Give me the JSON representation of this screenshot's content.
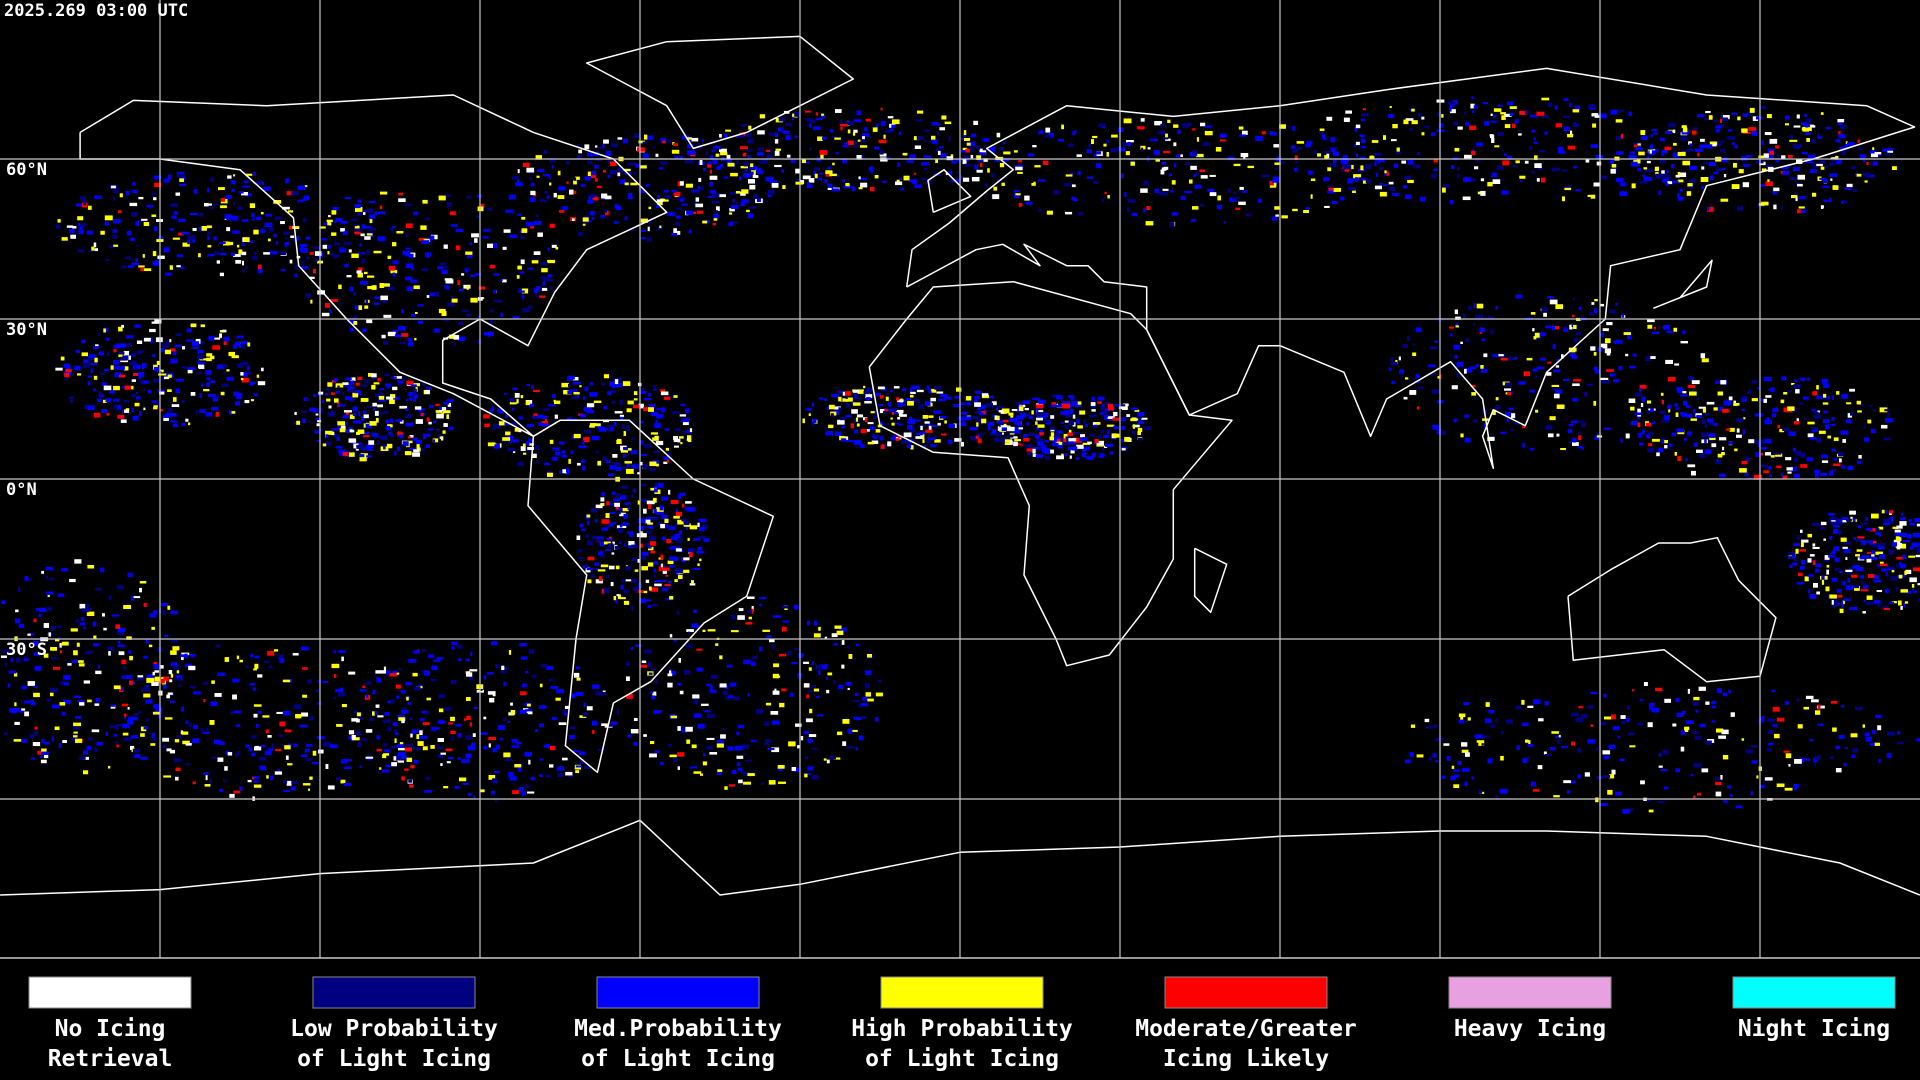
{
  "header": {
    "timestamp": "2025.269 03:00 UTC"
  },
  "map": {
    "lat_labels": [
      "60°N",
      "30°N",
      "0°N",
      "30°S"
    ]
  },
  "legend": {
    "items": [
      {
        "color": "#ffffff",
        "lines": [
          "No Icing",
          "Retrieval"
        ]
      },
      {
        "color": "#000080",
        "lines": [
          "Low Probability",
          "of Light Icing"
        ]
      },
      {
        "color": "#0000ff",
        "lines": [
          "Med.Probability",
          "of Light Icing"
        ]
      },
      {
        "color": "#ffff00",
        "lines": [
          "High Probability",
          "of Light Icing"
        ]
      },
      {
        "color": "#ff0000",
        "lines": [
          "Moderate/Greater",
          "Icing Likely"
        ]
      },
      {
        "color": "#e8a0e0",
        "lines": [
          "Heavy Icing"
        ]
      },
      {
        "color": "#00ffff",
        "lines": [
          "Night Icing"
        ]
      }
    ]
  }
}
